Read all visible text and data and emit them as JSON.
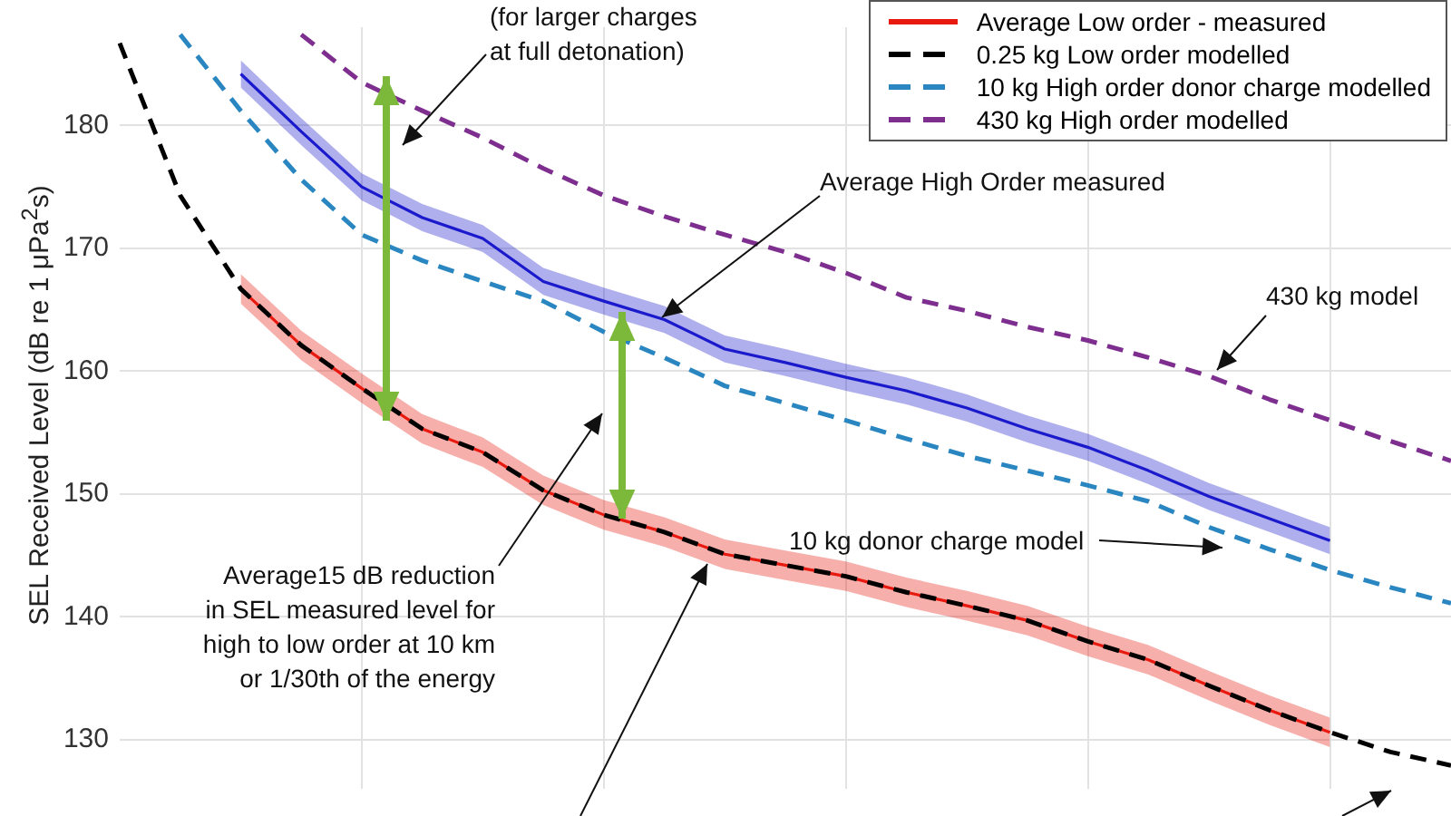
{
  "chart_data": {
    "type": "line",
    "ylabel": "SEL Received Level (dB re 1 μPa$^{2}$s)",
    "categories": [
      null,
      null,
      null,
      null,
      null,
      null,
      null,
      null,
      null,
      null,
      null,
      null,
      null,
      null,
      null,
      null,
      null,
      null,
      null,
      null,
      null,
      null,
      null
    ],
    "ylim": [
      126,
      188
    ],
    "yticks": [
      130,
      140,
      150,
      160,
      170,
      180
    ],
    "grid": true,
    "legend": "top right",
    "tick_labels": "y",
    "series": [
      {
        "color": "#1a1acc",
        "line_style": "solid",
        "values": [
          null,
          null,
          184.2,
          179.5,
          175.0,
          172.5,
          170.8,
          167.3,
          165.7,
          164.2,
          161.8,
          160.7,
          159.5,
          158.4,
          157.0,
          155.3,
          153.8,
          151.9,
          149.8,
          148.0,
          146.2,
          null,
          null
        ],
        "lower": [
          null,
          null,
          183.1,
          178.4,
          173.9,
          171.4,
          169.7,
          166.2,
          164.6,
          163.1,
          160.7,
          159.6,
          158.4,
          157.3,
          155.9,
          154.2,
          152.7,
          150.8,
          148.7,
          146.9,
          145.1,
          null,
          null
        ],
        "upper": [
          null,
          null,
          185.3,
          180.6,
          176.1,
          173.6,
          171.9,
          168.4,
          166.8,
          165.3,
          162.9,
          161.8,
          160.6,
          159.5,
          158.1,
          156.4,
          154.9,
          153.0,
          150.9,
          149.1,
          147.3,
          null,
          null
        ]
      },
      {
        "name": "Average Low order - measured",
        "color": "#e8190f",
        "line_style": "solid",
        "values": [
          null,
          null,
          166.7,
          162.1,
          158.6,
          155.3,
          153.4,
          150.3,
          148.3,
          146.9,
          145.1,
          144.2,
          143.3,
          142.0,
          140.9,
          139.7,
          138.0,
          136.5,
          134.4,
          132.4,
          130.6,
          null,
          null
        ],
        "lower": [
          null,
          null,
          165.5,
          160.9,
          157.4,
          154.1,
          152.2,
          149.1,
          147.1,
          145.7,
          143.9,
          143.0,
          142.1,
          140.8,
          139.7,
          138.5,
          136.8,
          135.3,
          133.2,
          131.2,
          129.4,
          null,
          null
        ],
        "upper": [
          null,
          null,
          167.9,
          163.3,
          159.8,
          156.5,
          154.6,
          151.5,
          149.5,
          148.1,
          146.3,
          145.4,
          144.5,
          143.2,
          142.1,
          140.9,
          139.2,
          137.7,
          135.6,
          133.6,
          131.8,
          null,
          null
        ]
      },
      {
        "name": "0.25 kg Low order modelled",
        "color": "#000000",
        "line_style": "dashed",
        "values": [
          186.7,
          174.3,
          166.7,
          162.1,
          158.6,
          155.3,
          153.4,
          150.3,
          148.3,
          146.9,
          145.1,
          144.2,
          143.3,
          142.0,
          140.9,
          139.7,
          138.0,
          136.5,
          134.4,
          132.4,
          130.6,
          129.0,
          127.9
        ]
      },
      {
        "name": "10 kg High order donor charge modelled",
        "color": "#2a86c0",
        "line_style": "dashed",
        "values": [
          null,
          187.4,
          181.2,
          175.6,
          171.1,
          169.0,
          167.3,
          165.7,
          163.2,
          161.1,
          158.8,
          157.4,
          156.0,
          154.5,
          153.1,
          151.9,
          150.7,
          149.4,
          147.3,
          145.5,
          143.8,
          142.4,
          141.1
        ]
      },
      {
        "name": "430 kg High order modelled",
        "color": "#7d2e8e",
        "line_style": "dashed",
        "values": [
          null,
          null,
          null,
          187.4,
          183.5,
          181.2,
          179.0,
          176.5,
          174.3,
          172.6,
          171.1,
          169.7,
          168.0,
          166.0,
          164.9,
          163.6,
          162.5,
          161.1,
          159.6,
          157.7,
          156.0,
          154.3,
          152.7
        ]
      }
    ],
    "annotations": [
      "(for larger charges\nat full detonation)",
      "Average High Order measured",
      "430 kg model",
      "10 kg donor charge model",
      "Average15 dB reduction\nin SEL measured level for\nhigh to low order at 10 km\nor 1/30th of the energy"
    ]
  }
}
